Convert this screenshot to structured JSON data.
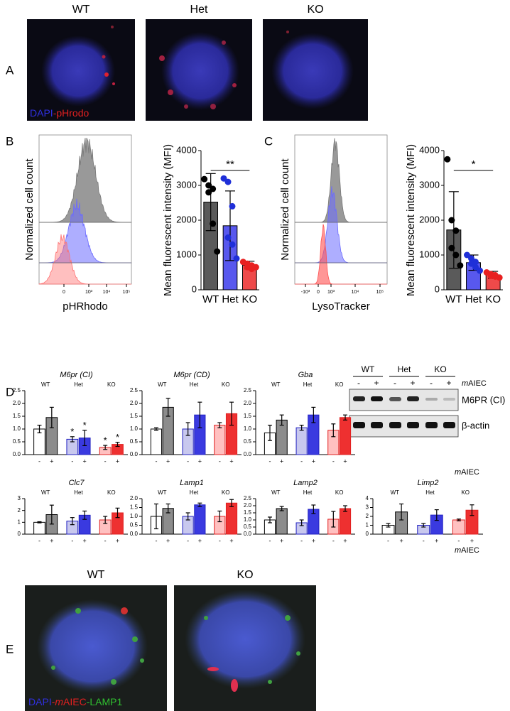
{
  "panel_a": {
    "letter": "A",
    "titles": [
      "WT",
      "Het",
      "KO"
    ],
    "stain": [
      "DAPI",
      "-pHrodo"
    ]
  },
  "panel_b": {
    "letter": "B",
    "y_label": "Normalized cell count",
    "x_label": "pHRhodo",
    "x_ticks": [
      "0",
      "10³",
      "10⁴",
      "10⁵"
    ]
  },
  "panel_c": {
    "letter": "C",
    "y_label": "Normalized cell count",
    "x_label": "LysoTracker",
    "x_ticks": [
      "-10³",
      "0",
      "10³",
      "10⁴",
      "10⁵"
    ]
  },
  "panel_d": {
    "letter": "D",
    "blot": {
      "groups": [
        "WT",
        "Het",
        "KO"
      ],
      "treatment": [
        "-",
        "+",
        "-",
        "+",
        "-",
        "+"
      ],
      "treatment_label": [
        "m",
        "AIEC"
      ],
      "bands": [
        "M6PR (CI)",
        "β-actin"
      ]
    }
  },
  "panel_e": {
    "letter": "E",
    "titles": [
      "WT",
      "KO"
    ],
    "stain": [
      "DAPI",
      "-",
      "m",
      "AIEC",
      "-LAMP1"
    ]
  },
  "chart_data": [
    {
      "type": "bar",
      "y_label": "Mean fluorescent intensity (MFI)",
      "categories": [
        "WT",
        "Het",
        "KO"
      ],
      "colors": [
        "#5a5a5a",
        "#5858ee",
        "#ee4a4a"
      ],
      "edge_colors": [
        "#000000",
        "#000000",
        "#000000"
      ],
      "point_colors": [
        "#000000",
        "#1f2fd8",
        "#e82020"
      ],
      "values": [
        2520,
        1840,
        710
      ],
      "errors": [
        820,
        1000,
        110
      ],
      "points": [
        [
          3180,
          3000,
          2900,
          2800,
          1900,
          1100
        ],
        [
          3200,
          3100,
          2400,
          1500,
          1300,
          900
        ],
        [
          800,
          750,
          700,
          650,
          600,
          650
        ]
      ],
      "ylim": [
        0,
        4000
      ],
      "yticks": [
        0,
        1000,
        2000,
        3000,
        4000
      ],
      "significance": "**"
    },
    {
      "type": "bar",
      "y_label": "Mean fluorescent intensity (MFI)",
      "categories": [
        "WT",
        "Het",
        "KO"
      ],
      "colors": [
        "#5a5a5a",
        "#5858ee",
        "#ee4a4a"
      ],
      "edge_colors": [
        "#000000",
        "#000000",
        "#000000"
      ],
      "point_colors": [
        "#000000",
        "#1f2fd8",
        "#e82020"
      ],
      "values": [
        1720,
        780,
        430
      ],
      "errors": [
        1100,
        220,
        100
      ],
      "points": [
        [
          3750,
          2000,
          1700,
          1200,
          1000,
          700
        ],
        [
          1000,
          900,
          800,
          750,
          650,
          550
        ],
        [
          500,
          450,
          420,
          400,
          380,
          350
        ]
      ],
      "ylim": [
        0,
        4000
      ],
      "yticks": [
        0,
        1000,
        2000,
        3000,
        4000
      ],
      "significance": "*"
    },
    {
      "type": "grouped-bar",
      "title": "M6pr (CI)",
      "groups": [
        "WT",
        "Het",
        "KO"
      ],
      "categories": [
        "-",
        "+",
        "-",
        "+",
        "-",
        "+"
      ],
      "colors": [
        "#ffffff",
        "#8c8c8c",
        "#c8c8ee",
        "#3a3ae0",
        "#ffc0c0",
        "#ee3030"
      ],
      "edge_colors": [
        "#000000",
        "#000000",
        "#2020c0",
        "#2020c0",
        "#e02020",
        "#e02020"
      ],
      "values": [
        1.0,
        1.45,
        0.6,
        0.65,
        0.28,
        0.4
      ],
      "errors": [
        0.15,
        0.4,
        0.1,
        0.3,
        0.08,
        0.08
      ],
      "ylim": [
        0,
        2.5
      ],
      "yticks": [
        {
          "value": 0,
          "label": "0.0"
        },
        {
          "value": 0.5,
          "label": "0.5"
        },
        {
          "value": 1,
          "label": "1.0"
        },
        {
          "value": 1.5,
          "label": "1.5"
        },
        {
          "value": 2,
          "label": "2.0"
        },
        {
          "value": 2.5,
          "label": "2.5"
        }
      ],
      "significance": [
        null,
        null,
        "*",
        "*",
        "*",
        "*"
      ]
    },
    {
      "type": "grouped-bar",
      "title": "M6pr (CD)",
      "groups": [
        "WT",
        "Het",
        "KO"
      ],
      "categories": [
        "-",
        "+",
        "-",
        "+",
        "-",
        "+"
      ],
      "colors": [
        "#ffffff",
        "#8c8c8c",
        "#c8c8ee",
        "#3a3ae0",
        "#ffc0c0",
        "#ee3030"
      ],
      "edge_colors": [
        "#000000",
        "#000000",
        "#2020c0",
        "#2020c0",
        "#e02020",
        "#e02020"
      ],
      "values": [
        1.0,
        1.85,
        1.0,
        1.55,
        1.15,
        1.6
      ],
      "errors": [
        0.05,
        0.35,
        0.25,
        0.5,
        0.1,
        0.45
      ],
      "ylim": [
        0,
        2.5
      ],
      "yticks": [
        {
          "value": 0,
          "label": "0.0"
        },
        {
          "value": 0.5,
          "label": "0.5"
        },
        {
          "value": 1,
          "label": "1.0"
        },
        {
          "value": 1.5,
          "label": "1.5"
        },
        {
          "value": 2,
          "label": "2.0"
        },
        {
          "value": 2.5,
          "label": "2.5"
        }
      ]
    },
    {
      "type": "grouped-bar",
      "title": "Gba",
      "groups": [
        "WT",
        "Het",
        "KO"
      ],
      "categories": [
        "-",
        "+",
        "-",
        "+",
        "-",
        "+"
      ],
      "colors": [
        "#ffffff",
        "#8c8c8c",
        "#c8c8ee",
        "#3a3ae0",
        "#ffc0c0",
        "#ee3030"
      ],
      "edge_colors": [
        "#000000",
        "#000000",
        "#2020c0",
        "#2020c0",
        "#e02020",
        "#e02020"
      ],
      "values": [
        0.85,
        1.35,
        1.05,
        1.55,
        0.95,
        1.45
      ],
      "errors": [
        0.3,
        0.2,
        0.1,
        0.3,
        0.25,
        0.1
      ],
      "ylim": [
        0,
        2.5
      ],
      "yticks": [
        {
          "value": 0,
          "label": "0.0"
        },
        {
          "value": 0.5,
          "label": "0.5"
        },
        {
          "value": 1,
          "label": "1.0"
        },
        {
          "value": 1.5,
          "label": "1.5"
        },
        {
          "value": 2,
          "label": "2.0"
        },
        {
          "value": 2.5,
          "label": "2.5"
        }
      ],
      "x_label": [
        "m",
        "AIEC"
      ]
    },
    {
      "type": "grouped-bar",
      "title": "Clc7",
      "groups": [
        "WT",
        "Het",
        "KO"
      ],
      "categories": [
        "-",
        "+",
        "-",
        "+",
        "-",
        "+"
      ],
      "colors": [
        "#ffffff",
        "#8c8c8c",
        "#c8c8ee",
        "#3a3ae0",
        "#ffc0c0",
        "#ee3030"
      ],
      "edge_colors": [
        "#000000",
        "#000000",
        "#2020c0",
        "#2020c0",
        "#e02020",
        "#e02020"
      ],
      "values": [
        1.0,
        1.65,
        1.1,
        1.6,
        1.2,
        1.8
      ],
      "errors": [
        0.05,
        0.8,
        0.3,
        0.35,
        0.3,
        0.4
      ],
      "ylim": [
        0,
        3
      ],
      "yticks": [
        0,
        1,
        2,
        3
      ]
    },
    {
      "type": "grouped-bar",
      "title": "Lamp1",
      "groups": [
        "WT",
        "Het",
        "KO"
      ],
      "categories": [
        "-",
        "+",
        "-",
        "+",
        "-",
        "+"
      ],
      "colors": [
        "#ffffff",
        "#8c8c8c",
        "#c8c8ee",
        "#3a3ae0",
        "#ffc0c0",
        "#ee3030"
      ],
      "edge_colors": [
        "#000000",
        "#000000",
        "#2020c0",
        "#2020c0",
        "#e02020",
        "#e02020"
      ],
      "values": [
        1.0,
        1.45,
        1.0,
        1.65,
        1.0,
        1.75
      ],
      "errors": [
        0.7,
        0.25,
        0.2,
        0.1,
        0.3,
        0.2
      ],
      "ylim": [
        0,
        2
      ],
      "yticks": [
        {
          "value": 0,
          "label": "0.0"
        },
        {
          "value": 0.5,
          "label": "0.5"
        },
        {
          "value": 1,
          "label": "1.0"
        },
        {
          "value": 1.5,
          "label": "1.5"
        },
        {
          "value": 2,
          "label": "2.0"
        }
      ]
    },
    {
      "type": "grouped-bar",
      "title": "Lamp2",
      "groups": [
        "WT",
        "Het",
        "KO"
      ],
      "categories": [
        "-",
        "+",
        "-",
        "+",
        "-",
        "+"
      ],
      "colors": [
        "#ffffff",
        "#8c8c8c",
        "#c8c8ee",
        "#3a3ae0",
        "#ffc0c0",
        "#ee3030"
      ],
      "edge_colors": [
        "#000000",
        "#000000",
        "#2020c0",
        "#2020c0",
        "#e02020",
        "#e02020"
      ],
      "values": [
        1.0,
        1.8,
        0.8,
        1.75,
        1.05,
        1.8
      ],
      "errors": [
        0.2,
        0.15,
        0.2,
        0.3,
        0.55,
        0.2
      ],
      "ylim": [
        0,
        2.5
      ],
      "yticks": [
        {
          "value": 0,
          "label": "0.0"
        },
        {
          "value": 0.5,
          "label": "0.5"
        },
        {
          "value": 1,
          "label": "1.0"
        },
        {
          "value": 1.5,
          "label": "1.5"
        },
        {
          "value": 2,
          "label": "2.0"
        },
        {
          "value": 2.5,
          "label": "2.5"
        }
      ]
    },
    {
      "type": "grouped-bar",
      "title": "Limp2",
      "groups": [
        "WT",
        "Het",
        "KO"
      ],
      "categories": [
        "-",
        "+",
        "-",
        "+",
        "-",
        "+"
      ],
      "colors": [
        "#ffffff",
        "#8c8c8c",
        "#c8c8ee",
        "#3a3ae0",
        "#ffc0c0",
        "#ee3030"
      ],
      "edge_colors": [
        "#000000",
        "#000000",
        "#2020c0",
        "#2020c0",
        "#e02020",
        "#e02020"
      ],
      "values": [
        1.0,
        2.5,
        1.0,
        2.15,
        1.6,
        2.7
      ],
      "errors": [
        0.2,
        0.9,
        0.2,
        0.6,
        0.1,
        0.6
      ],
      "ylim": [
        0,
        4
      ],
      "yticks": [
        0,
        1,
        2,
        3,
        4
      ],
      "x_label": [
        "m",
        "AIEC"
      ]
    }
  ]
}
